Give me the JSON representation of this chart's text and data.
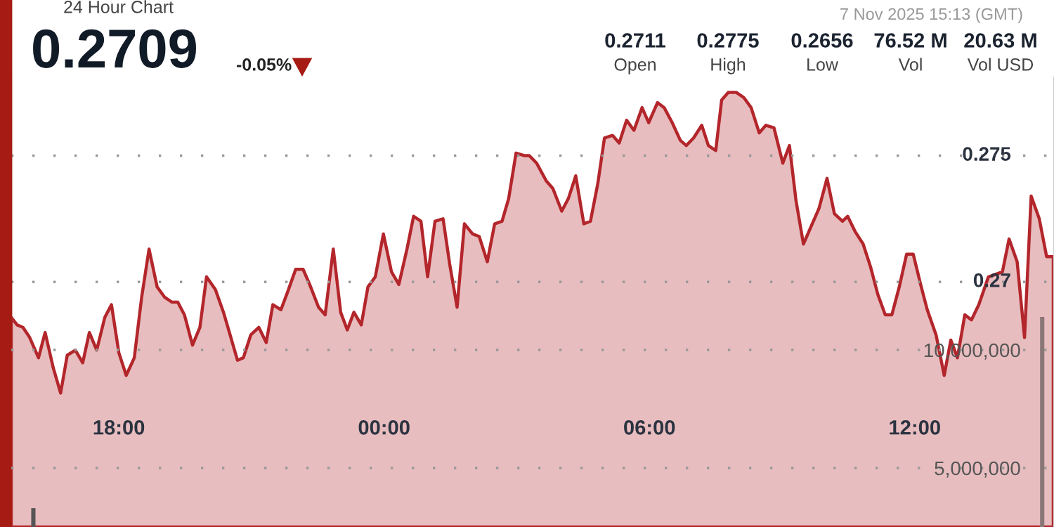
{
  "chart_data": {
    "type": "area",
    "title": "24 Hour Chart",
    "subtitle": "0.2709",
    "annotations": [
      "-0.05%",
      "0.2711",
      "Open",
      "0.2775",
      "High",
      "0.2656",
      "Low",
      "76.52 M",
      "Vol",
      "20.63 M",
      "Vol USD",
      "7 Nov 2025 15:13 (GMT)"
    ],
    "series": [
      {
        "color": "#b3262b",
        "x": [
          "2025-11-06T15:34",
          "2025-11-06T15:42",
          "2025-11-06T15:50",
          "2025-11-06T15:59",
          "2025-11-06T16:11",
          "2025-11-06T16:20",
          "2025-11-06T16:31",
          "2025-11-06T16:41",
          "2025-11-06T16:50",
          "2025-11-06T17:01",
          "2025-11-06T17:11",
          "2025-11-06T17:20",
          "2025-11-06T17:30",
          "2025-11-06T17:41",
          "2025-11-06T17:50",
          "2025-11-06T18:00",
          "2025-11-06T18:10",
          "2025-11-06T18:21",
          "2025-11-06T18:31",
          "2025-11-06T18:41",
          "2025-11-06T18:52",
          "2025-11-06T19:02",
          "2025-11-06T19:12",
          "2025-11-06T19:20",
          "2025-11-06T19:29",
          "2025-11-06T19:40",
          "2025-11-06T19:50",
          "2025-11-06T19:59",
          "2025-11-06T20:11",
          "2025-11-06T20:22",
          "2025-11-06T20:31",
          "2025-11-06T20:41",
          "2025-11-06T20:49",
          "2025-11-06T20:59",
          "2025-11-06T21:10",
          "2025-11-06T21:20",
          "2025-11-06T21:29",
          "2025-11-06T21:40",
          "2025-11-06T21:49",
          "2025-11-06T22:00",
          "2025-11-06T22:10",
          "2025-11-06T22:19",
          "2025-11-06T22:31",
          "2025-11-06T22:40",
          "2025-11-06T22:51",
          "2025-11-06T23:01",
          "2025-11-06T23:10",
          "2025-11-06T23:19",
          "2025-11-06T23:29",
          "2025-11-06T23:38",
          "2025-11-06T23:48",
          "2025-11-06T23:59",
          "2025-11-07T00:10",
          "2025-11-07T00:20",
          "2025-11-07T00:31",
          "2025-11-07T00:40",
          "2025-11-07T00:50",
          "2025-11-07T00:59",
          "2025-11-07T01:09",
          "2025-11-07T01:20",
          "2025-11-07T01:29",
          "2025-11-07T01:39",
          "2025-11-07T01:49",
          "2025-11-07T02:00",
          "2025-11-07T02:09",
          "2025-11-07T02:20",
          "2025-11-07T02:30",
          "2025-11-07T02:40",
          "2025-11-07T02:49",
          "2025-11-07T02:59",
          "2025-11-07T03:10",
          "2025-11-07T03:17",
          "2025-11-07T03:27",
          "2025-11-07T03:40",
          "2025-11-07T03:49",
          "2025-11-07T04:01",
          "2025-11-07T04:10",
          "2025-11-07T04:20",
          "2025-11-07T04:31",
          "2025-11-07T04:40",
          "2025-11-07T04:50",
          "2025-11-07T04:59",
          "2025-11-07T05:10",
          "2025-11-07T05:19",
          "2025-11-07T05:29",
          "2025-11-07T05:39",
          "2025-11-07T05:50",
          "2025-11-07T05:59",
          "2025-11-07T06:11",
          "2025-11-07T06:20",
          "2025-11-07T06:31",
          "2025-11-07T06:42",
          "2025-11-07T06:50",
          "2025-11-07T07:00",
          "2025-11-07T07:11",
          "2025-11-07T07:20",
          "2025-11-07T07:30",
          "2025-11-07T07:38",
          "2025-11-07T07:47",
          "2025-11-07T07:58",
          "2025-11-07T08:08",
          "2025-11-07T08:18",
          "2025-11-07T08:29",
          "2025-11-07T08:38",
          "2025-11-07T08:49",
          "2025-11-07T09:01",
          "2025-11-07T09:10",
          "2025-11-07T09:19",
          "2025-11-07T09:29",
          "2025-11-07T09:38",
          "2025-11-07T09:50",
          "2025-11-07T10:01",
          "2025-11-07T10:11",
          "2025-11-07T10:22",
          "2025-11-07T10:29",
          "2025-11-07T10:39",
          "2025-11-07T10:50",
          "2025-11-07T11:00",
          "2025-11-07T11:10",
          "2025-11-07T11:20",
          "2025-11-07T11:29",
          "2025-11-07T11:39",
          "2025-11-07T11:49",
          "2025-11-07T11:58",
          "2025-11-07T12:08",
          "2025-11-07T12:17",
          "2025-11-07T12:29",
          "2025-11-07T12:40",
          "2025-11-07T12:49",
          "2025-11-07T12:58",
          "2025-11-07T13:08",
          "2025-11-07T13:17",
          "2025-11-07T13:27",
          "2025-11-07T13:40",
          "2025-11-07T13:59",
          "2025-11-07T14:08",
          "2025-11-07T14:19",
          "2025-11-07T14:29",
          "2025-11-07T14:38",
          "2025-11-07T14:49",
          "2025-11-07T14:59",
          "2025-11-07T15:08"
        ],
        "values": [
          0.2686,
          0.2683,
          0.2682,
          0.2678,
          0.267,
          0.268,
          0.2666,
          0.2656,
          0.2671,
          0.2673,
          0.2668,
          0.268,
          0.2673,
          0.2686,
          0.2691,
          0.2672,
          0.2663,
          0.267,
          0.2694,
          0.2713,
          0.2698,
          0.2694,
          0.2692,
          0.2692,
          0.2687,
          0.2675,
          0.2682,
          0.2702,
          0.2697,
          0.2688,
          0.2679,
          0.2669,
          0.267,
          0.2679,
          0.2682,
          0.2676,
          0.2691,
          0.2689,
          0.2696,
          0.2705,
          0.2705,
          0.2699,
          0.269,
          0.2687,
          0.2713,
          0.2688,
          0.2681,
          0.2688,
          0.2683,
          0.2698,
          0.2702,
          0.2719,
          0.2704,
          0.2699,
          0.2713,
          0.2726,
          0.2724,
          0.2702,
          0.2724,
          0.2725,
          0.2707,
          0.269,
          0.2723,
          0.2719,
          0.2718,
          0.2708,
          0.2723,
          0.2724,
          0.2733,
          0.2751,
          0.275,
          0.275,
          0.2747,
          0.274,
          0.2737,
          0.2728,
          0.2733,
          0.2742,
          0.2723,
          0.2724,
          0.2739,
          0.2757,
          0.2758,
          0.2755,
          0.2764,
          0.276,
          0.2769,
          0.2763,
          0.2771,
          0.2769,
          0.2763,
          0.2756,
          0.2754,
          0.2757,
          0.2762,
          0.2754,
          0.2752,
          0.2772,
          0.2775,
          0.2775,
          0.2773,
          0.2769,
          0.2759,
          0.2762,
          0.2761,
          0.2747,
          0.2754,
          0.2732,
          0.2715,
          0.2721,
          0.2729,
          0.2741,
          0.2727,
          0.2724,
          0.2726,
          0.272,
          0.2715,
          0.2706,
          0.2695,
          0.2687,
          0.2687,
          0.2698,
          0.2711,
          0.2711,
          0.2699,
          0.2689,
          0.2679,
          0.2663,
          0.2677,
          0.267,
          0.2687,
          0.2685,
          0.2691,
          0.2702,
          0.2704,
          0.2717,
          0.2708,
          0.2678,
          0.2734,
          0.2725,
          0.271,
          0.271
        ]
      },
      {
        "type": "bar",
        "axis": "y2",
        "x": [
          "2025-11-06T16:04",
          "2025-11-07T14:53"
        ],
        "values": [
          3300000,
          11400000
        ],
        "colors": [
          "#555555",
          "#8a7676"
        ]
      }
    ],
    "xlim": [
      "2025-11-06T15:34",
      "2025-11-07T15:09"
    ],
    "xticks": [
      {
        "value": "2025-11-06T18:00",
        "label": "18:00"
      },
      {
        "value": "2025-11-07T00:00",
        "label": "00:00"
      },
      {
        "value": "2025-11-07T06:00",
        "label": "06:00"
      },
      {
        "value": "2025-11-07T12:00",
        "label": "12:00"
      }
    ],
    "ylim": [
      0.2603,
      0.2781
    ],
    "yticks": [
      0.27,
      0.275
    ],
    "y2lim": [
      2500000,
      21550000
    ],
    "y2ticks": [
      {
        "value": 5000000,
        "label": "5,000,000"
      },
      {
        "value": 10000000,
        "label": "10,000,000"
      }
    ],
    "grid": "y",
    "legend": false
  }
}
